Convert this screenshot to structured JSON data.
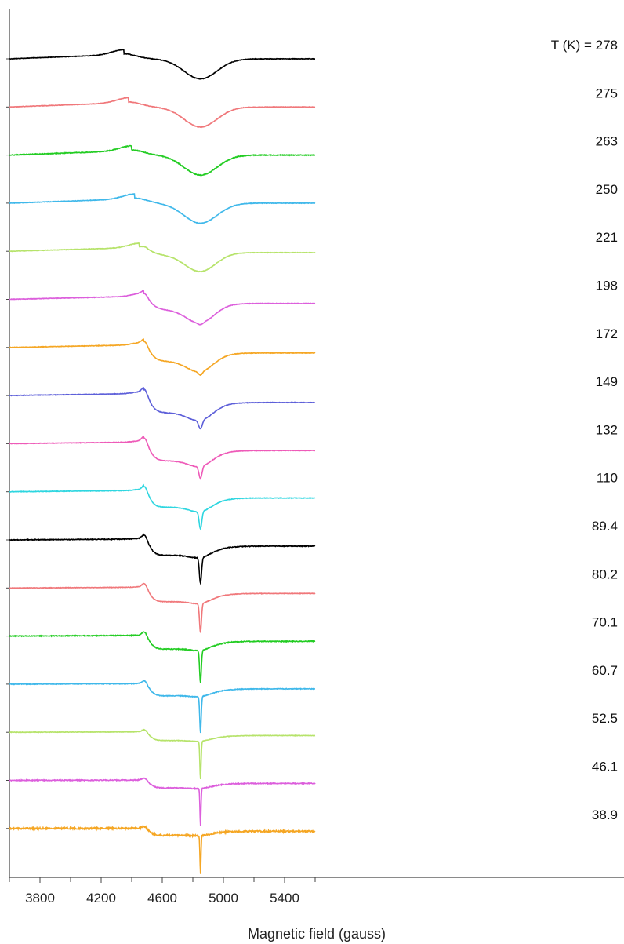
{
  "chart_data": {
    "type": "line",
    "title": "",
    "xlabel": "Magnetic field (gauss)",
    "ylabel": "",
    "xlim": [
      3600,
      5600
    ],
    "x_ticks": [
      3800,
      4200,
      4600,
      5000,
      5400
    ],
    "legend_header": "T (K) = ",
    "grid": false,
    "series": [
      {
        "name": "278",
        "color": "#000000",
        "broad": [
          4350,
          4850,
          110,
          0.58
        ],
        "narrow": [
          4500,
          4850,
          20,
          0.0
        ],
        "center": [
          4850,
          20,
          0.0
        ],
        "noise": 0.6
      },
      {
        "name": "275",
        "color": "#f0777a",
        "broad": [
          4380,
          4850,
          110,
          0.58
        ],
        "narrow": [
          4500,
          4850,
          20,
          0.0
        ],
        "center": [
          4850,
          20,
          0.0
        ],
        "noise": 0.6
      },
      {
        "name": "263",
        "color": "#22cc22",
        "broad": [
          4400,
          4850,
          110,
          0.58
        ],
        "narrow": [
          4500,
          4850,
          20,
          0.0
        ],
        "center": [
          4850,
          20,
          0.0
        ],
        "noise": 0.9
      },
      {
        "name": "250",
        "color": "#3fb8ea",
        "broad": [
          4420,
          4850,
          110,
          0.58
        ],
        "narrow": [
          4500,
          4850,
          20,
          0.0
        ],
        "center": [
          4850,
          20,
          0.0
        ],
        "noise": 0.6
      },
      {
        "name": "221",
        "color": "#b6e36a",
        "broad": [
          4450,
          4850,
          100,
          0.5
        ],
        "narrow": [
          4500,
          4850,
          20,
          0.1
        ],
        "center": [
          4850,
          20,
          0.0
        ],
        "noise": 0.6
      },
      {
        "name": "198",
        "color": "#dc5edc",
        "broad": [
          4480,
          4850,
          90,
          0.42
        ],
        "narrow": [
          4500,
          4850,
          20,
          0.3
        ],
        "center": [
          4850,
          20,
          0.05
        ],
        "noise": 0.6
      },
      {
        "name": "172",
        "color": "#f5a623",
        "broad": [
          4480,
          4850,
          85,
          0.35
        ],
        "narrow": [
          4500,
          4850,
          20,
          0.4
        ],
        "center": [
          4850,
          18,
          0.1
        ],
        "noise": 0.6
      },
      {
        "name": "149",
        "color": "#5d5fd9",
        "broad": [
          4480,
          4850,
          80,
          0.28
        ],
        "narrow": [
          4500,
          4850,
          20,
          0.5
        ],
        "center": [
          4850,
          16,
          0.25
        ],
        "noise": 0.6
      },
      {
        "name": "132",
        "color": "#ee5ab8",
        "broad": [
          4480,
          4850,
          75,
          0.22
        ],
        "narrow": [
          4500,
          4850,
          20,
          0.5
        ],
        "center": [
          4850,
          14,
          0.35
        ],
        "noise": 0.6
      },
      {
        "name": "110",
        "color": "#2ed6e0",
        "broad": [
          4480,
          4850,
          70,
          0.18
        ],
        "narrow": [
          4500,
          4850,
          18,
          0.45
        ],
        "center": [
          4850,
          12,
          0.5
        ],
        "noise": 0.7
      },
      {
        "name": "89.4",
        "color": "#000000",
        "broad": [
          4480,
          4850,
          65,
          0.12
        ],
        "narrow": [
          4500,
          4850,
          18,
          0.45
        ],
        "center": [
          4850,
          10,
          0.75
        ],
        "noise": 0.9
      },
      {
        "name": "80.2",
        "color": "#f0777a",
        "broad": [
          4480,
          4850,
          60,
          0.1
        ],
        "narrow": [
          4500,
          4850,
          18,
          0.4
        ],
        "center": [
          4850,
          9,
          0.85
        ],
        "noise": 0.6
      },
      {
        "name": "70.1",
        "color": "#22cc22",
        "broad": [
          4480,
          4850,
          60,
          0.08
        ],
        "narrow": [
          4500,
          4850,
          18,
          0.38
        ],
        "center": [
          4850,
          8,
          0.95
        ],
        "noise": 1.0
      },
      {
        "name": "60.7",
        "color": "#3fb8ea",
        "broad": [
          4480,
          4850,
          60,
          0.06
        ],
        "narrow": [
          4500,
          4850,
          18,
          0.34
        ],
        "center": [
          4850,
          7,
          1.05
        ],
        "noise": 0.8
      },
      {
        "name": "52.5",
        "color": "#b6e36a",
        "broad": [
          4480,
          4850,
          60,
          0.05
        ],
        "narrow": [
          4500,
          4850,
          18,
          0.24
        ],
        "center": [
          4850,
          6,
          1.1
        ],
        "noise": 0.6
      },
      {
        "name": "46.1",
        "color": "#dc5edc",
        "broad": [
          4480,
          4850,
          60,
          0.04
        ],
        "narrow": [
          4500,
          4850,
          18,
          0.22
        ],
        "center": [
          4850,
          5,
          1.1
        ],
        "noise": 1.1
      },
      {
        "name": "38.9",
        "color": "#f5a623",
        "broad": [
          4480,
          4850,
          60,
          0.03
        ],
        "narrow": [
          4500,
          4850,
          18,
          0.2
        ],
        "center": [
          4850,
          5,
          1.1
        ],
        "noise": 2.0
      }
    ]
  }
}
